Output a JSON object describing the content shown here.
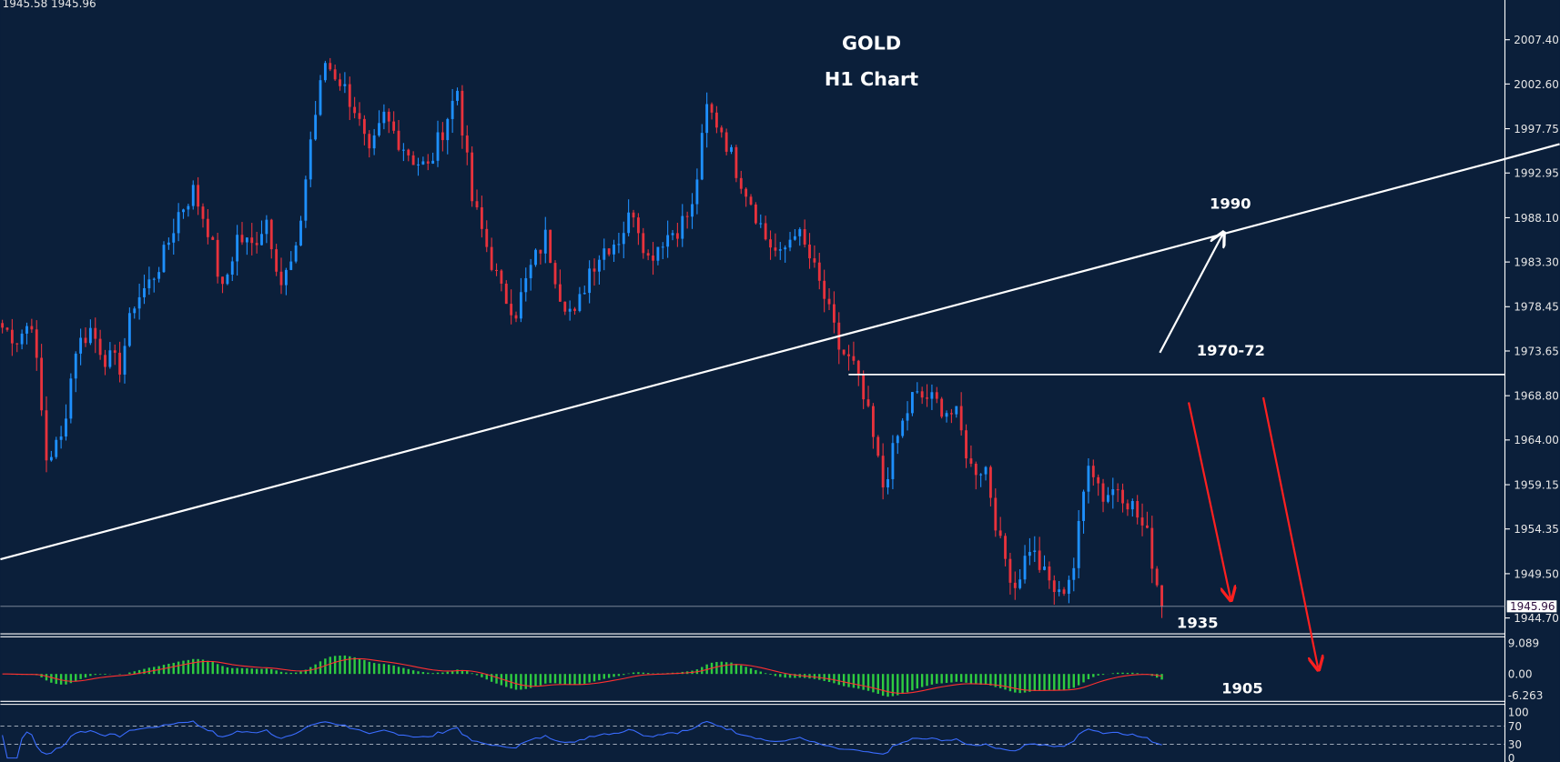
{
  "header": {
    "ohlc_readout": "1945.58 1945.96"
  },
  "colors": {
    "background": "#0b1f3a",
    "bull": "#1e90ff",
    "bear": "#e8323c",
    "macd_hist": "#2ecc40",
    "macd_signal": "#ff3030",
    "rsi": "#3a6cff",
    "lines": "#ffffff"
  },
  "chart_data": {
    "type": "candlestick",
    "title": "GOLD",
    "subtitle": "H1 Chart",
    "symbol": "GOLD",
    "timeframe": "H1",
    "ylim": [
      1942.5,
      2011.5
    ],
    "y_ticks": [
      "2007.40",
      "2002.60",
      "1997.75",
      "1992.95",
      "1988.10",
      "1983.30",
      "1978.45",
      "1973.65",
      "1968.80",
      "1964.00",
      "1959.15",
      "1954.35",
      "1949.50",
      "1944.70"
    ],
    "current_price": "1945.96",
    "approx_closes": [
      1976.2,
      1975,
      1977,
      1962,
      1964,
      1974,
      1976,
      1973,
      1972,
      1979,
      1981,
      1984,
      1988.6,
      1991,
      1987,
      1980,
      1986,
      1985,
      1988,
      1981,
      1984,
      1996.6,
      2005,
      2003,
      2000,
      1994.5,
      1999,
      1996.6,
      1994.5,
      1993.4,
      1997.7,
      2002,
      1990,
      1985,
      1980,
      1978,
      1982.6,
      1986,
      1980,
      1977.2,
      1982.6,
      1984.8,
      1985.9,
      1989,
      1983.7,
      1985.9,
      1987,
      1989,
      1999.9,
      1997.7,
      1993.4,
      1990,
      1985.9,
      1983.7,
      1987,
      1983.7,
      1979.4,
      1974,
      1971.9,
      1966.5,
      1959,
      1964.3,
      1968.6,
      1968.6,
      1967.6,
      1966.5,
      1961,
      1961,
      1952.5,
      1948.2,
      1952.5,
      1949.3,
      1947,
      1950.3,
      1962.2,
      1957.9,
      1959,
      1956.8,
      1953.5,
      1945.96
    ],
    "annotations": {
      "resistance_trendline_label": "1990",
      "horizontal_level_label": "1970-72",
      "target_1_label": "1935",
      "target_2_label": "1905",
      "horizontal_level_price": 1971.1
    },
    "indicators": {
      "macd": {
        "y_ticks": [
          "9.089",
          "0.00",
          "-6.263"
        ],
        "ylim": [
          -6.263,
          9.089
        ]
      },
      "rsi": {
        "y_ticks": [
          "100",
          "70",
          "30",
          "0"
        ],
        "levels": [
          70,
          30
        ],
        "ylim": [
          0,
          100
        ]
      }
    }
  }
}
